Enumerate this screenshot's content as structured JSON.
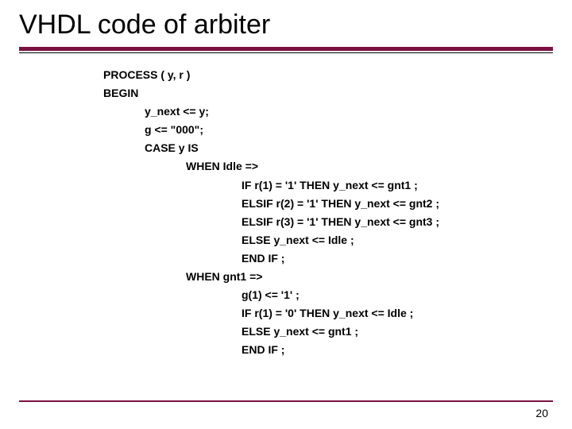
{
  "title": "VHDL code of arbiter",
  "code": {
    "l0": "PROCESS ( y, r )",
    "l1": "BEGIN",
    "l2": "y_next <= y;",
    "l3": "g <= \"000\";",
    "l4": "CASE y IS",
    "l5": "WHEN Idle =>",
    "l6": "IF r(1) = '1' THEN y_next <= gnt1 ;",
    "l7": "ELSIF r(2) = '1' THEN y_next <= gnt2 ;",
    "l8": "ELSIF r(3) = '1' THEN y_next <= gnt3 ;",
    "l9": "ELSE y_next <= Idle ;",
    "l10": "END IF ;",
    "l11": "WHEN gnt1 =>",
    "l12": "g(1) <= '1' ;",
    "l13": "IF r(1) = '0' THEN y_next <= Idle ;",
    "l14": "ELSE y_next <= gnt1 ;",
    "l15": "END IF ;"
  },
  "pageNumber": "20"
}
